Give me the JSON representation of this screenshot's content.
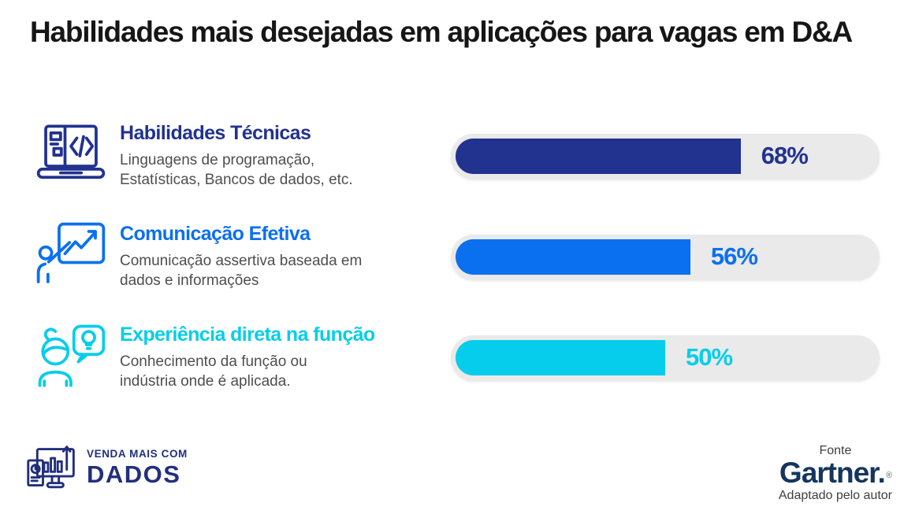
{
  "page": {
    "title": "Habilidades mais desejadas em aplicações para vagas em D&A"
  },
  "skills": [
    {
      "icon": "laptop-code-icon",
      "title": "Habilidades Técnicas",
      "description_lines": [
        "Linguagens de programação,",
        "Estatísticas, Bancos de dados, etc."
      ],
      "color": "#21328F",
      "value_label": "68%"
    },
    {
      "icon": "presenter-chart-icon",
      "title": "Comunicação Efetiva",
      "description_lines": [
        "Comunicação assertiva baseada em",
        "dados e informações"
      ],
      "color": "#0B70EF",
      "value_label": "56%"
    },
    {
      "icon": "person-idea-icon",
      "title": "Experiência direta na função",
      "description_lines": [
        "Conhecimento da função ou",
        "indústria onde é aplicada."
      ],
      "color": "#05CDEB",
      "value_label": "50%"
    }
  ],
  "chart_data": {
    "type": "bar",
    "orientation": "horizontal",
    "title": "Habilidades mais desejadas em aplicações para vagas em D&A",
    "categories": [
      "Habilidades Técnicas",
      "Comunicação Efetiva",
      "Experiência direta na função"
    ],
    "values": [
      68,
      56,
      50
    ],
    "unit": "%",
    "xlim": [
      0,
      100
    ],
    "bar_colors": [
      "#21328F",
      "#0B70EF",
      "#05CDEB"
    ],
    "track_color": "#EAEAEA",
    "value_labels": [
      "68%",
      "56%",
      "50%"
    ],
    "grid": false,
    "legend": false
  },
  "footer": {
    "brand": {
      "icon": "monitor-chart-icon",
      "line1": "VENDA MAIS COM",
      "line2": "DADOS",
      "color": "#222F7D"
    },
    "source": {
      "label": "Fonte",
      "name": "Gartner.",
      "reg_mark": "®",
      "name_color": "#15355F",
      "note": "Adaptado pelo autor"
    }
  }
}
